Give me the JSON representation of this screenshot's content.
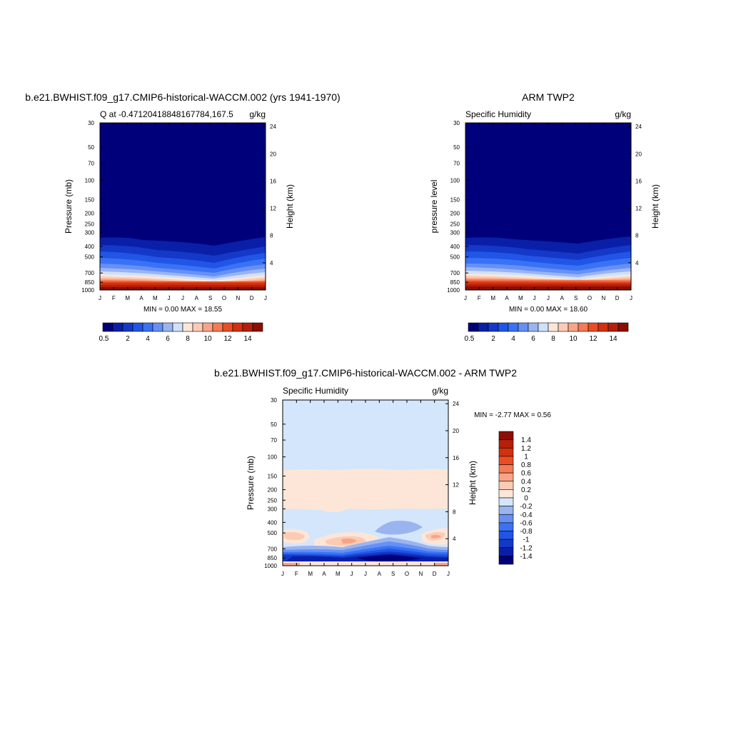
{
  "panels": [
    {
      "title": "b.e21.BWHIST.f09_g17.CMIP6-historical-WACCM.002 (yrs 1941-1970)",
      "subtitle_left": "Q at -0.47120418848167784,167.5",
      "subtitle_right": "g/kg",
      "ylabel": "Pressure (mb)",
      "ylabel_right": "Height (km)",
      "minmax": "MIN =   0.00 MAX =  18.55",
      "pressure_ticks": [
        "30",
        "50",
        "70",
        "100",
        "150",
        "200",
        "250",
        "300",
        "400",
        "500",
        "700",
        "850",
        "1000"
      ],
      "height_ticks": [
        "24",
        "20",
        "16",
        "12",
        "8",
        "4"
      ],
      "month_ticks": [
        "J",
        "F",
        "M",
        "A",
        "M",
        "J",
        "J",
        "A",
        "S",
        "O",
        "N",
        "D",
        "J"
      ]
    },
    {
      "title": "ARM TWP2",
      "subtitle_left": "Specific Humidity",
      "subtitle_right": "g/kg",
      "ylabel": "pressure level",
      "ylabel_right": "Height (km)",
      "minmax": "MIN =   0.00 MAX =  18.60",
      "pressure_ticks": [
        "30",
        "50",
        "70",
        "100",
        "150",
        "200",
        "250",
        "300",
        "400",
        "500",
        "700",
        "850",
        "1000"
      ],
      "height_ticks": [
        "24",
        "20",
        "16",
        "12",
        "8",
        "4"
      ],
      "month_ticks": [
        "J",
        "F",
        "M",
        "A",
        "M",
        "J",
        "J",
        "A",
        "S",
        "O",
        "N",
        "D",
        "J"
      ]
    },
    {
      "title": "b.e21.BWHIST.f09_g17.CMIP6-historical-WACCM.002 - ARM TWP2",
      "subtitle_left": "Specific Humidity",
      "subtitle_right": "g/kg",
      "ylabel": "Pressure (mb)",
      "ylabel_right": "Height (km)",
      "minmax": "MIN =  -2.77 MAX =   0.56",
      "pressure_ticks": [
        "30",
        "50",
        "70",
        "100",
        "150",
        "200",
        "250",
        "300",
        "400",
        "500",
        "700",
        "850",
        "1000"
      ],
      "height_ticks": [
        "24",
        "20",
        "16",
        "12",
        "8",
        "4"
      ],
      "month_ticks": [
        "J",
        "F",
        "M",
        "A",
        "M",
        "J",
        "J",
        "A",
        "S",
        "O",
        "N",
        "D",
        "J"
      ]
    }
  ],
  "colorbar_horizontal": {
    "labels": [
      "0.5",
      "2",
      "4",
      "6",
      "8",
      "10",
      "12",
      "14"
    ],
    "colors": [
      "#00007a",
      "#0a1fa8",
      "#1438c8",
      "#2155e6",
      "#3a72f5",
      "#6690f5",
      "#9ab4f0",
      "#cfe0fa",
      "#fde6d8",
      "#fccbb3",
      "#f9a487",
      "#f57a55",
      "#ea4d25",
      "#d3300f",
      "#b51f08",
      "#8c0d02"
    ]
  },
  "colorbar_vertical": {
    "labels": [
      "1.4",
      "1.2",
      "1",
      "0.8",
      "0.6",
      "0.4",
      "0.2",
      "0",
      "-0.2",
      "-0.4",
      "-0.6",
      "-0.8",
      "-1",
      "-1.2",
      "-1.4"
    ],
    "colors": [
      "#8c0d02",
      "#b51f08",
      "#d3300f",
      "#ea4d25",
      "#f57a55",
      "#f9a487",
      "#fccbb3",
      "#fde6d8",
      "#d3e6fb",
      "#9ab4f0",
      "#6690f5",
      "#3a72f5",
      "#2155e6",
      "#1438c8",
      "#0a1fa8",
      "#00007a"
    ]
  },
  "chart_data": [
    {
      "type": "heatmap",
      "title": "b.e21.BWHIST.f09_g17.CMIP6-historical-WACCM.002 (yrs 1941-1970)",
      "x": [
        "J",
        "F",
        "M",
        "A",
        "M",
        "J",
        "J",
        "A",
        "S",
        "O",
        "N",
        "D",
        "J"
      ],
      "xlabel": "",
      "ylabel": "Pressure (mb)",
      "ylabel_right": "Height (km)",
      "y_scale": "log",
      "ylim": [
        1000,
        30
      ],
      "levels": [
        0.5,
        1,
        2,
        3,
        4,
        5,
        6,
        7,
        8,
        9,
        10,
        11,
        12,
        13,
        14
      ],
      "min": 0.0,
      "max": 18.55,
      "units": "g/kg",
      "colorbar": "horizontal, below"
    },
    {
      "type": "heatmap",
      "title": "ARM TWP2",
      "x": [
        "J",
        "F",
        "M",
        "A",
        "M",
        "J",
        "J",
        "A",
        "S",
        "O",
        "N",
        "D",
        "J"
      ],
      "xlabel": "",
      "ylabel": "pressure level",
      "ylabel_right": "Height (km)",
      "y_scale": "log",
      "ylim": [
        1000,
        30
      ],
      "levels": [
        0.5,
        1,
        2,
        3,
        4,
        5,
        6,
        7,
        8,
        9,
        10,
        11,
        12,
        13,
        14
      ],
      "min": 0.0,
      "max": 18.6,
      "units": "g/kg",
      "colorbar": "horizontal, below"
    },
    {
      "type": "heatmap",
      "title": "b.e21.BWHIST.f09_g17.CMIP6-historical-WACCM.002 - ARM TWP2",
      "x": [
        "J",
        "F",
        "M",
        "A",
        "M",
        "J",
        "J",
        "A",
        "S",
        "O",
        "N",
        "D",
        "J"
      ],
      "xlabel": "",
      "ylabel": "Pressure (mb)",
      "ylabel_right": "Height (km)",
      "y_scale": "log",
      "ylim": [
        1000,
        30
      ],
      "levels": [
        -1.4,
        -1.2,
        -1,
        -0.8,
        -0.6,
        -0.4,
        -0.2,
        0,
        0.2,
        0.4,
        0.6,
        0.8,
        1,
        1.2,
        1.4
      ],
      "min": -2.77,
      "max": 0.56,
      "units": "g/kg",
      "colorbar": "vertical, right"
    }
  ]
}
